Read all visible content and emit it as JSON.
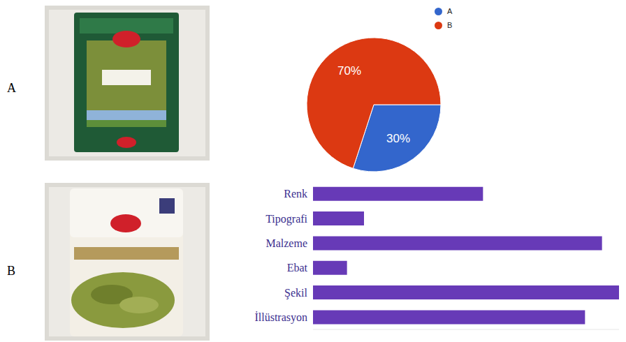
{
  "row_labels": [
    "A",
    "B"
  ],
  "chart_data": [
    {
      "type": "pie",
      "categories": [
        "A",
        "B"
      ],
      "values": [
        30,
        70
      ],
      "value_labels": [
        "30%",
        "70%"
      ],
      "colors": [
        "#3366cc",
        "#dc3912"
      ],
      "data_labels": true,
      "legend": "top-right"
    },
    {
      "type": "bar",
      "orientation": "horizontal",
      "categories": [
        "Renk",
        "Tipografi",
        "Malzeme",
        "Ebat",
        "Şekil",
        "İllüstrasyon"
      ],
      "values": [
        10,
        3,
        17,
        2,
        18,
        16
      ],
      "color": "#673ab7",
      "xlim": [
        0,
        18
      ],
      "grid": false,
      "tick_labels": "y"
    }
  ]
}
